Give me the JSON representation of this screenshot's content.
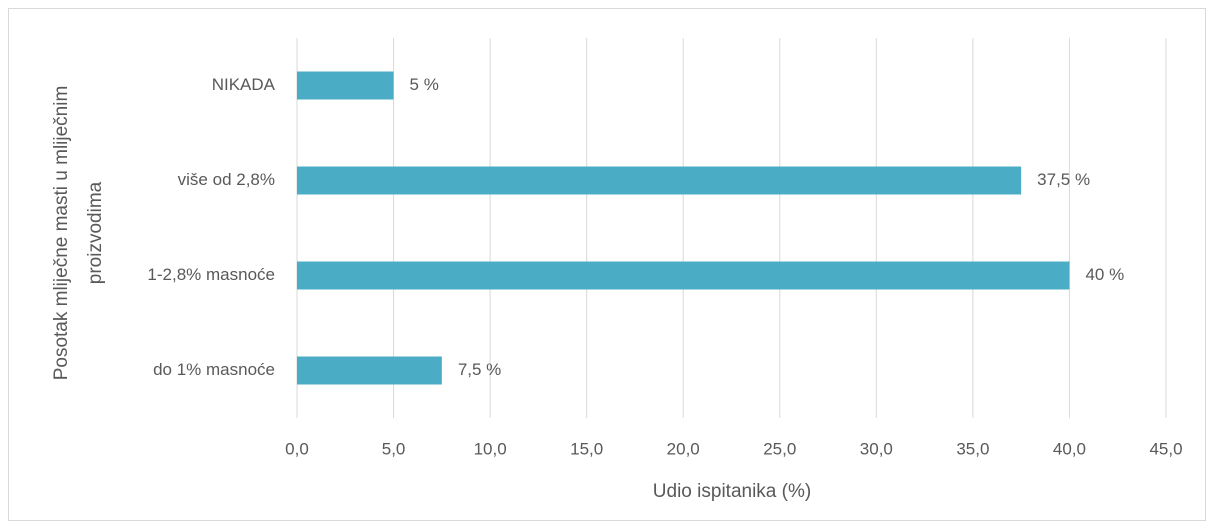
{
  "chart_data": {
    "type": "barh",
    "xlabel": "Udio ispitanika (%)",
    "ylabel_lines": [
      "Posotak mliječne masti u mliječnim",
      "proizvodima"
    ],
    "categories": [
      "do 1% masnoće",
      "1-2,8% masnoće",
      "više od 2,8%",
      "NIKADA"
    ],
    "values": [
      7.5,
      40,
      37.5,
      5
    ],
    "value_labels": [
      "7,5 %",
      "40 %",
      "37,5 %",
      "5 %"
    ],
    "color": "#4bacc6",
    "xlim": [
      0,
      45
    ],
    "xticks": [
      {
        "value": 0,
        "label": "0,0"
      },
      {
        "value": 5,
        "label": "5,0"
      },
      {
        "value": 10,
        "label": "10,0"
      },
      {
        "value": 15,
        "label": "15,0"
      },
      {
        "value": 20,
        "label": "20,0"
      },
      {
        "value": 25,
        "label": "25,0"
      },
      {
        "value": 30,
        "label": "30,0"
      },
      {
        "value": 35,
        "label": "35,0"
      },
      {
        "value": 40,
        "label": "40,0"
      },
      {
        "value": 45,
        "label": "45,0"
      }
    ],
    "grid": true
  }
}
